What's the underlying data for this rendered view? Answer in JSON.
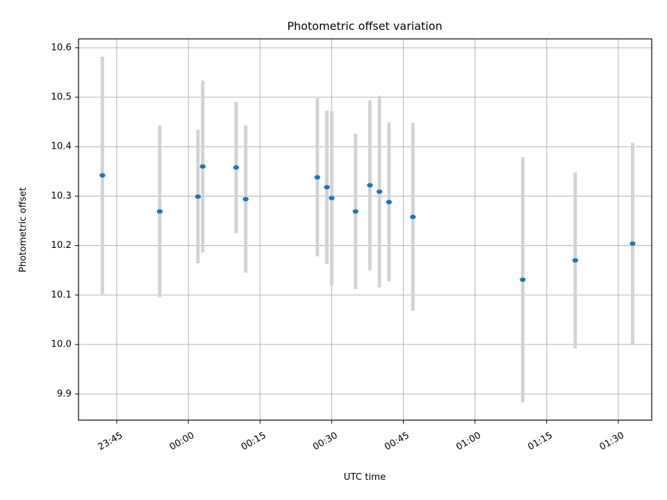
{
  "chart_data": {
    "type": "scatter",
    "title": "Photometric offset variation",
    "xlabel": "UTC time",
    "ylabel": "Photometric offset",
    "x_axis_kind": "time",
    "x_ticks": [
      "23:45",
      "00:00",
      "00:15",
      "00:30",
      "00:45",
      "01:00",
      "01:15",
      "01:30"
    ],
    "y_ticks": [
      "9.9",
      "10.0",
      "10.1",
      "10.2",
      "10.3",
      "10.4",
      "10.5",
      "10.6"
    ],
    "xlim": [
      "23:37",
      "01:37"
    ],
    "ylim": [
      9.847,
      10.618
    ],
    "grid": true,
    "error_bar_color": "#d3d3d3",
    "marker_color": "#1f77b4",
    "points": [
      {
        "x": "23:42",
        "y": 10.342,
        "err": 0.24
      },
      {
        "x": "23:54",
        "y": 10.269,
        "err": 0.174
      },
      {
        "x": "00:02",
        "y": 10.299,
        "err": 0.135
      },
      {
        "x": "00:03",
        "y": 10.36,
        "err": 0.174
      },
      {
        "x": "00:10",
        "y": 10.358,
        "err": 0.133
      },
      {
        "x": "00:12",
        "y": 10.294,
        "err": 0.149
      },
      {
        "x": "00:27",
        "y": 10.338,
        "err": 0.16
      },
      {
        "x": "00:29",
        "y": 10.318,
        "err": 0.155
      },
      {
        "x": "00:30",
        "y": 10.296,
        "err": 0.176
      },
      {
        "x": "00:35",
        "y": 10.269,
        "err": 0.157
      },
      {
        "x": "00:38",
        "y": 10.322,
        "err": 0.172
      },
      {
        "x": "00:40",
        "y": 10.309,
        "err": 0.194
      },
      {
        "x": "00:42",
        "y": 10.288,
        "err": 0.161
      },
      {
        "x": "00:47",
        "y": 10.258,
        "err": 0.19
      },
      {
        "x": "01:10",
        "y": 10.131,
        "err": 0.248
      },
      {
        "x": "01:21",
        "y": 10.17,
        "err": 0.178
      },
      {
        "x": "01:33",
        "y": 10.204,
        "err": 0.204
      }
    ]
  }
}
